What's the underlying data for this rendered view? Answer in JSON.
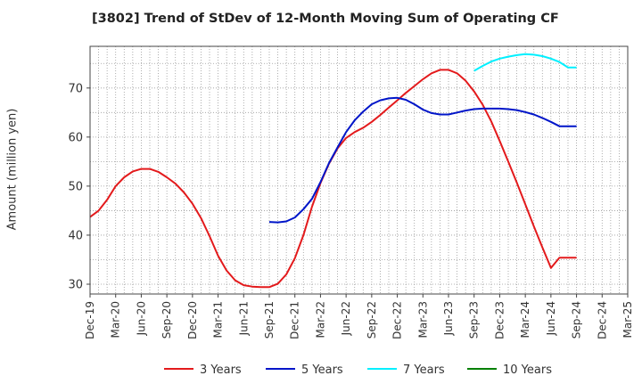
{
  "chart_data": {
    "type": "line",
    "title": "[3802]  Trend of StDev of 12-Month Moving Sum of Operating CF",
    "xlabel": "",
    "ylabel": "Amount (million yen)",
    "ylim": [
      28,
      78.5
    ],
    "yticks": [
      30,
      40,
      50,
      60,
      70
    ],
    "x_tick_labels": [
      "Dec-19",
      "Mar-20",
      "Jun-20",
      "Sep-20",
      "Dec-20",
      "Mar-21",
      "Jun-21",
      "Sep-21",
      "Dec-21",
      "Mar-22",
      "Jun-22",
      "Sep-22",
      "Dec-22",
      "Mar-23",
      "Jun-23",
      "Sep-23",
      "Dec-23",
      "Mar-24",
      "Jun-24",
      "Sep-24",
      "Dec-24",
      "Mar-25"
    ],
    "x_range_months": [
      0,
      63
    ],
    "grid": true,
    "legend_position": "bottom",
    "series": [
      {
        "name": "3 Years",
        "color": "#e31a1c",
        "x": [
          "Dec-19",
          "Jan-20",
          "Feb-20",
          "Mar-20",
          "Apr-20",
          "May-20",
          "Jun-20",
          "Jul-20",
          "Aug-20",
          "Sep-20",
          "Oct-20",
          "Nov-20",
          "Dec-20",
          "Jan-21",
          "Feb-21",
          "Mar-21",
          "Apr-21",
          "May-21",
          "Jun-21",
          "Jul-21",
          "Aug-21",
          "Sep-21",
          "Oct-21",
          "Nov-21",
          "Dec-21",
          "Jan-22",
          "Feb-22",
          "Mar-22",
          "Apr-22",
          "May-22",
          "Jun-22",
          "Jul-22",
          "Aug-22",
          "Sep-22",
          "Oct-22",
          "Nov-22",
          "Dec-22",
          "Jan-23",
          "Feb-23",
          "Mar-23",
          "Apr-23",
          "May-23",
          "Jun-23",
          "Jul-23",
          "Aug-23",
          "Sep-23",
          "Oct-23",
          "Nov-23",
          "Dec-23",
          "Jan-24",
          "Feb-24",
          "Mar-24",
          "Apr-24",
          "May-24",
          "Jun-24",
          "Jul-24",
          "Aug-24",
          "Sep-24"
        ],
        "values": [
          43.7,
          45.0,
          47.2,
          50.0,
          51.8,
          53.0,
          53.5,
          53.5,
          52.9,
          51.8,
          50.5,
          48.7,
          46.4,
          43.5,
          39.8,
          35.8,
          32.8,
          30.8,
          29.8,
          29.5,
          29.4,
          29.4,
          30.1,
          32.0,
          35.3,
          40.0,
          45.8,
          50.6,
          54.6,
          57.7,
          59.8,
          61.0,
          61.9,
          63.1,
          64.5,
          66.0,
          67.5,
          69.0,
          70.4,
          71.8,
          73.0,
          73.7,
          73.7,
          73.0,
          71.5,
          69.3,
          66.6,
          63.2,
          59.2,
          55.0,
          50.7,
          46.3,
          41.8,
          37.5,
          33.3,
          35.4,
          35.4,
          35.4
        ],
        "values_note": ""
      },
      {
        "name": "5 Years",
        "color": "#0015c9",
        "x": [
          "Sep-21",
          "Oct-21",
          "Nov-21",
          "Dec-21",
          "Jan-22",
          "Feb-22",
          "Mar-22",
          "Apr-22",
          "May-22",
          "Jun-22",
          "Jul-22",
          "Aug-22",
          "Sep-22",
          "Oct-22",
          "Nov-22",
          "Dec-22",
          "Jan-23",
          "Feb-23",
          "Mar-23",
          "Apr-23",
          "May-23",
          "Jun-23",
          "Jul-23",
          "Aug-23",
          "Sep-23",
          "Oct-23",
          "Nov-23",
          "Dec-23",
          "Jan-24",
          "Feb-24",
          "Mar-24",
          "Apr-24",
          "May-24",
          "Jun-24",
          "Jul-24",
          "Aug-24",
          "Sep-24"
        ],
        "values": [
          42.7,
          42.6,
          42.8,
          43.6,
          45.3,
          47.4,
          50.8,
          54.7,
          57.9,
          61.0,
          63.4,
          65.2,
          66.7,
          67.5,
          67.9,
          68.0,
          67.6,
          66.7,
          65.6,
          64.9,
          64.6,
          64.6,
          65.0,
          65.4,
          65.7,
          65.8,
          65.8,
          65.8,
          65.7,
          65.5,
          65.1,
          64.6,
          63.9,
          63.1,
          62.2,
          62.2,
          62.2
        ]
      },
      {
        "name": "7 Years",
        "color": "#00f0ff",
        "x": [
          "Sep-23",
          "Oct-23",
          "Nov-23",
          "Dec-23",
          "Jan-24",
          "Feb-24",
          "Mar-24",
          "Apr-24",
          "May-24",
          "Jun-24",
          "Jul-24",
          "Aug-24",
          "Sep-24"
        ],
        "values": [
          73.5,
          74.5,
          75.4,
          76.0,
          76.4,
          76.7,
          76.9,
          76.8,
          76.5,
          76.0,
          75.3,
          74.2,
          74.2
        ]
      },
      {
        "name": "10 Years",
        "color": "#008000",
        "x": [],
        "values": []
      }
    ]
  }
}
